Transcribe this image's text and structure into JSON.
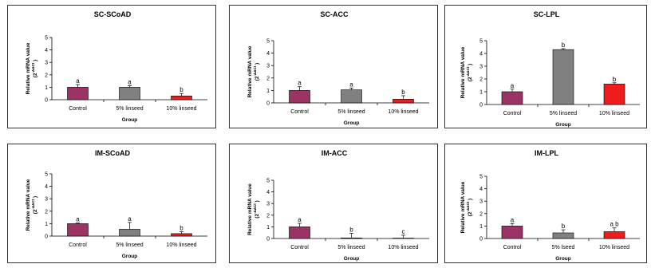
{
  "legend_colors": {
    "Control": "#9B3464",
    "5% linseed": "#808080",
    "10% linseed": "#EE1C1C"
  },
  "chart_data": [
    {
      "type": "bar",
      "title": "SC-SCoAD",
      "xlabel": "Group",
      "ylabel": "Relative mRNA value",
      "ylabel2": "(2",
      "ylabel_sup": "-ΔΔCt",
      "ylabel_close": ")",
      "categories": [
        "Control",
        "5% linseed",
        "10% linseed"
      ],
      "values": [
        1.0,
        1.0,
        0.3
      ],
      "errors": [
        0.22,
        0.12,
        0.2
      ],
      "sig": [
        "a",
        "a",
        "b"
      ],
      "ylim": [
        0,
        5
      ],
      "yticks": [
        "0",
        "1",
        "2",
        "3",
        "4",
        "5"
      ]
    },
    {
      "type": "bar",
      "title": "SC-ACC",
      "xlabel": "Group",
      "ylabel": "Relative mRNA value",
      "ylabel2": "(2",
      "ylabel_sup": "-ΔΔCt",
      "ylabel_close": ")",
      "categories": [
        "Control",
        "5% linseed",
        "10% linseed"
      ],
      "values": [
        1.0,
        1.05,
        0.3
      ],
      "errors": [
        0.3,
        0.15,
        0.28
      ],
      "sig": [
        "a",
        "a",
        "b"
      ],
      "ylim": [
        0,
        5
      ],
      "yticks": [
        "0",
        "1",
        "2",
        "3",
        "4",
        "5"
      ]
    },
    {
      "type": "bar",
      "title": "SC-LPL",
      "xlabel": "Group",
      "ylabel": "Relative mRNA value",
      "ylabel2": "(2",
      "ylabel_sup": "-ΔΔCt",
      "ylabel_close": ")",
      "categories": [
        "Control",
        "5% linseed",
        "10% linseed"
      ],
      "values": [
        1.0,
        4.3,
        1.6
      ],
      "errors": [
        0.2,
        0.08,
        0.1
      ],
      "sig": [
        "a",
        "b",
        "b"
      ],
      "ylim": [
        0,
        5
      ],
      "yticks": [
        "0",
        "1",
        "2",
        "3",
        "4",
        "5"
      ]
    },
    {
      "type": "bar",
      "title": "IM-SCoAD",
      "xlabel": "Group",
      "ylabel": "Relative mRNA value",
      "ylabel2": "(2",
      "ylabel_sup": "-ΔΔCt",
      "ylabel_close": ")",
      "categories": [
        "Control",
        "5% linseed",
        "10% linseed"
      ],
      "values": [
        1.0,
        0.55,
        0.2
      ],
      "errors": [
        0.05,
        0.55,
        0.15
      ],
      "sig": [
        "a",
        "a",
        "b"
      ],
      "ylim": [
        0,
        5
      ],
      "yticks": [
        "0",
        "1",
        "2",
        "3",
        "4",
        "5"
      ]
    },
    {
      "type": "bar",
      "title": "IM-ACC",
      "xlabel": "Group",
      "ylabel": "Relative mRNA value",
      "ylabel2": "(2",
      "ylabel_sup": "-ΔΔCt",
      "ylabel_close": ")",
      "categories": [
        "Control",
        "5% linseed",
        "10% linseed"
      ],
      "values": [
        1.0,
        0.05,
        0.03
      ],
      "errors": [
        0.3,
        0.4,
        0.25
      ],
      "sig": [
        "a",
        "b",
        "c"
      ],
      "ylim": [
        0,
        5
      ],
      "yticks": [
        "0",
        "1",
        "2",
        "3",
        "4",
        "5"
      ]
    },
    {
      "type": "bar",
      "title": "IM-LPL",
      "xlabel": "Group",
      "ylabel": "Relative mRNA value",
      "ylabel2": "(2",
      "ylabel_sup": "-ΔΔCt",
      "ylabel_close": ")",
      "categories": [
        "Control",
        "5% lseed",
        "10% linseed"
      ],
      "values": [
        1.0,
        0.45,
        0.55
      ],
      "errors": [
        0.2,
        0.25,
        0.3
      ],
      "sig": [
        "a",
        "b",
        "a b"
      ],
      "ylim": [
        0,
        5
      ],
      "yticks": [
        "0",
        "1",
        "2",
        "3",
        "4",
        "5"
      ]
    }
  ]
}
